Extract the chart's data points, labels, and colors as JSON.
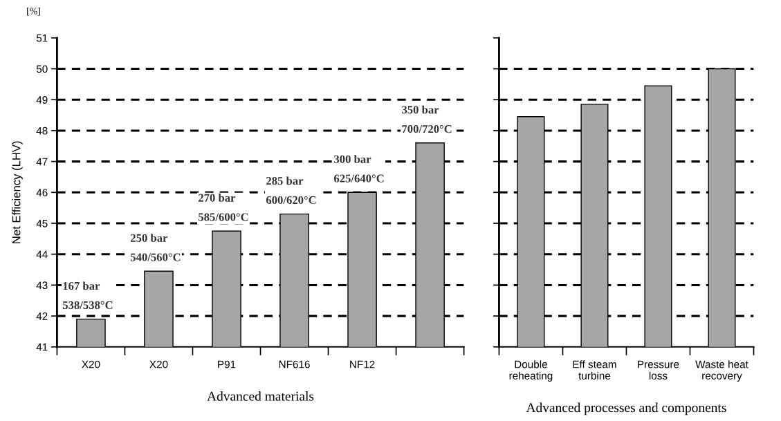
{
  "chart_data": [
    {
      "type": "bar",
      "ylabel": "Net Efficiency (LHV)",
      "xlabel": "Advanced materials",
      "categories": [
        "X20",
        "X20",
        "P91",
        "NF616",
        "NF12",
        null
      ],
      "series": [
        {
          "color": "#a6a6a6",
          "values": [
            41.9,
            43.45,
            44.75,
            45.3,
            46.0,
            47.6
          ]
        }
      ],
      "ylim": [
        41,
        51
      ],
      "yticks": [
        41,
        42,
        43,
        44,
        45,
        46,
        47,
        48,
        49,
        50,
        51
      ],
      "grid": "y",
      "annotations": [
        "[%]",
        "167 bar\n538/538°C",
        "250 bar\n540/560°C",
        "270 bar\n585/600°C",
        "285 bar\n600/620°C",
        "300 bar\n625/640°C",
        "350 bar\n700/720°C"
      ]
    },
    {
      "type": "bar",
      "xlabel": "Advanced processes and components",
      "categories": [
        "Double\nreheating",
        "Eff steam\nturbine",
        "Pressure\nloss",
        "Waste heat\nrecovery"
      ],
      "series": [
        {
          "color": "#a6a6a6",
          "values": [
            48.45,
            48.85,
            49.45,
            50.0
          ]
        }
      ],
      "ylim": [
        41,
        51
      ],
      "yticks": [
        41,
        42,
        43,
        44,
        45,
        46,
        47,
        48,
        49,
        50,
        51
      ],
      "grid": "y",
      "tick_labels": "x"
    }
  ]
}
